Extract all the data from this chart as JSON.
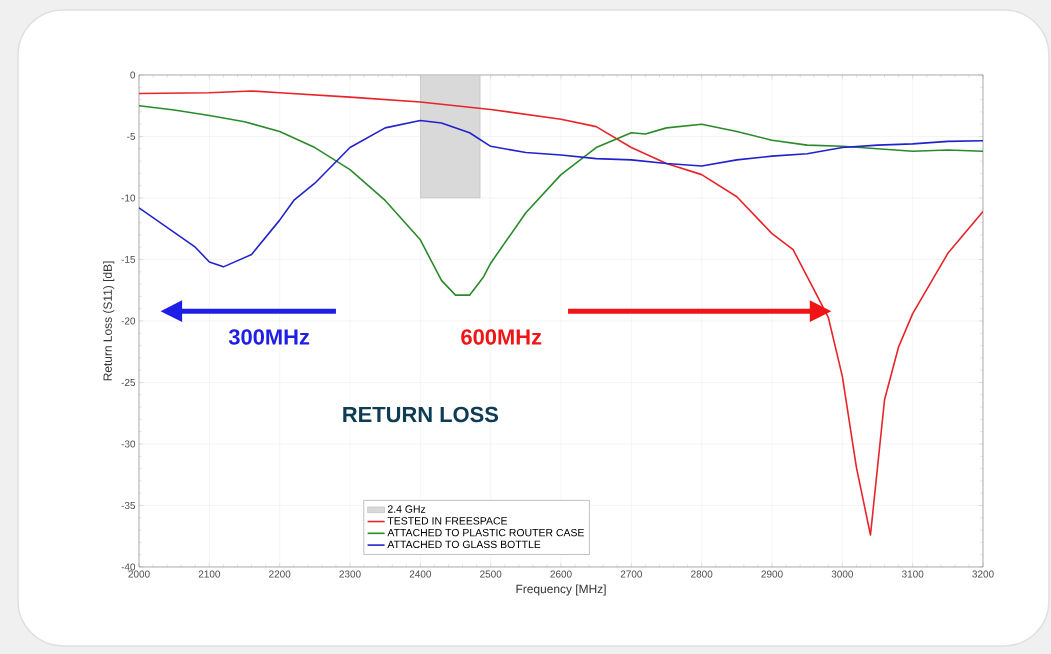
{
  "chart_data": {
    "type": "line",
    "xlabel": "Frequency [MHz]",
    "ylabel": "Return Loss (S11) [dB]",
    "xlim": [
      2000,
      3200
    ],
    "ylim": [
      -40,
      0
    ],
    "xticks": [
      2000,
      2100,
      2200,
      2300,
      2400,
      2500,
      2600,
      2700,
      2800,
      2900,
      3000,
      3100,
      3200
    ],
    "yticks": [
      -40,
      -35,
      -30,
      -25,
      -20,
      -15,
      -10,
      -5,
      0
    ],
    "grid": true,
    "legend": "bottom",
    "marker": "none",
    "line_style": "solid",
    "annotations": [
      "RETURN LOSS",
      "300MHz",
      "600MHz"
    ],
    "series": [
      {
        "name": "TESTED IN FREESPACE",
        "color": "#e8232a",
        "x": [
          2000,
          2100,
          2160,
          2200,
          2300,
          2400,
          2500,
          2600,
          2650,
          2700,
          2750,
          2800,
          2850,
          2900,
          2930,
          2960,
          2980,
          3000,
          3020,
          3040,
          3060,
          3080,
          3100,
          3150,
          3200
        ],
        "values": [
          -1.5,
          -1.45,
          -1.3,
          -1.45,
          -1.8,
          -2.2,
          -2.8,
          -3.6,
          -4.2,
          -5.9,
          -7.2,
          -8.1,
          -9.9,
          -12.9,
          -14.2,
          -17.5,
          -19.7,
          -24.5,
          -31.9,
          -37.4,
          -26.4,
          -22.1,
          -19.4,
          -14.5,
          -11.1
        ]
      },
      {
        "name": "ATTACHED TO PLASTIC ROUTER CASE",
        "color": "#2a8a2a",
        "x": [
          2000,
          2050,
          2100,
          2150,
          2200,
          2250,
          2300,
          2350,
          2400,
          2430,
          2450,
          2470,
          2490,
          2500,
          2550,
          2600,
          2650,
          2700,
          2720,
          2750,
          2800,
          2850,
          2900,
          2950,
          3000,
          3100,
          3150,
          3200
        ],
        "values": [
          -2.5,
          -2.85,
          -3.3,
          -3.8,
          -4.6,
          -5.9,
          -7.7,
          -10.2,
          -13.4,
          -16.7,
          -17.9,
          -17.9,
          -16.4,
          -15.3,
          -11.2,
          -8.1,
          -5.9,
          -4.7,
          -4.8,
          -4.3,
          -4.0,
          -4.6,
          -5.3,
          -5.7,
          -5.8,
          -6.2,
          -6.1,
          -6.2
        ]
      },
      {
        "name": "ATTACHED TO GLASS BOTTLE",
        "color": "#2222cc",
        "x": [
          2000,
          2050,
          2080,
          2100,
          2120,
          2160,
          2200,
          2220,
          2250,
          2300,
          2350,
          2400,
          2430,
          2470,
          2500,
          2550,
          2600,
          2650,
          2700,
          2750,
          2800,
          2850,
          2900,
          2950,
          3000,
          3050,
          3100,
          3150,
          3200
        ],
        "values": [
          -10.8,
          -12.8,
          -14.0,
          -15.2,
          -15.6,
          -14.6,
          -11.8,
          -10.2,
          -8.8,
          -5.9,
          -4.3,
          -3.7,
          -3.9,
          -4.7,
          -5.8,
          -6.3,
          -6.5,
          -6.8,
          -6.9,
          -7.2,
          -7.4,
          -6.9,
          -6.6,
          -6.4,
          -5.9,
          -5.7,
          -5.6,
          -5.4,
          -5.35
        ]
      },
      {
        "name": "2.4 GHz",
        "type": "area",
        "color": "#d9d9d9",
        "x": [
          2400,
          2485
        ],
        "values": [
          -10,
          -10
        ]
      }
    ]
  }
}
